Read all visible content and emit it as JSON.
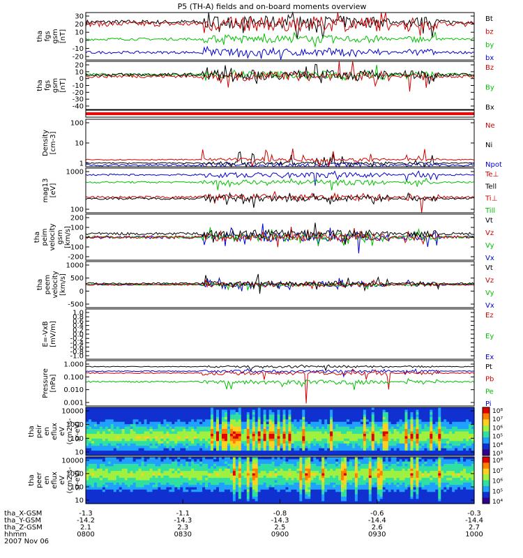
{
  "title": "P5 (TH-A) fields and on-board moments overview",
  "chart_data": {
    "type": "line",
    "title": "P5 (TH-A) fields and on-board moments overview",
    "x_axis": {
      "ticks": [
        "0800",
        "0830",
        "0900",
        "0930",
        "1000"
      ],
      "date": "2007 Nov 06",
      "ephemeris": [
        {
          "label": "tha_X-GSM",
          "values": [
            "-1.3",
            "-1.1",
            "-0.8",
            "-0.6",
            "-0.3"
          ]
        },
        {
          "label": "tha_Y-GSM",
          "values": [
            "-14.2",
            "-14.3",
            "-14.3",
            "-14.4",
            "-14.4"
          ]
        },
        {
          "label": "tha_Z-GSM",
          "values": [
            "2.1",
            "2.3",
            "2.5",
            "2.6",
            "2.7"
          ]
        },
        {
          "label": "hhmm",
          "values": [
            "0800",
            "0830",
            "0900",
            "0930",
            "1000"
          ]
        }
      ]
    },
    "panels": [
      {
        "id": "fgs_gsm",
        "ylabel_lines": [
          "tha",
          "fgs",
          "gsm",
          "[nT]"
        ],
        "scale": "linear",
        "ylim": [
          -20,
          30
        ],
        "ticks": [
          "30",
          "20",
          "10",
          "0",
          "-10",
          "-20"
        ],
        "legend": [
          {
            "name": "Bt",
            "color": "#000000"
          },
          {
            "name": "bz",
            "color": "#d00000"
          },
          {
            "name": "by",
            "color": "#00c000"
          },
          {
            "name": "bx",
            "color": "#0000d0"
          }
        ]
      },
      {
        "id": "fgs_gsm_dp",
        "ylabel_lines": [
          "tha",
          "fgs",
          "gsm",
          "[nT]"
        ],
        "scale": "linear",
        "ylim": [
          -45,
          20
        ],
        "ticks": [
          "20",
          "10",
          "0",
          "-10",
          "-20",
          "-30",
          "-40"
        ],
        "legend": [
          {
            "name": "Bz",
            "color": "#d00000"
          },
          {
            "name": "By",
            "color": "#00c000"
          },
          {
            "name": "Bx",
            "color": "#000000"
          }
        ]
      },
      {
        "id": "red_bar",
        "ylabel_lines": [],
        "scale": "none",
        "ticks": [],
        "legend": []
      },
      {
        "id": "density",
        "ylabel_lines": [
          "Density",
          "[cm-3]"
        ],
        "scale": "log",
        "ylim": [
          1,
          200
        ],
        "ticks": [
          "100",
          "10",
          "1"
        ],
        "legend": [
          {
            "name": "Ne",
            "color": "#d00000"
          },
          {
            "name": "Ni",
            "color": "#000000"
          },
          {
            "name": "Npot",
            "color": "#0000d0"
          }
        ]
      },
      {
        "id": "temperature",
        "ylabel_lines": [
          "mag13",
          "[eV]"
        ],
        "scale": "log",
        "ylim": [
          30,
          3000
        ],
        "ticks": [
          "1000",
          "100"
        ],
        "legend": [
          {
            "name": "Te⊥",
            "color": "#d00000"
          },
          {
            "name": "Tell",
            "color": "#000000"
          },
          {
            "name": "Ti⊥",
            "color": "#d00000"
          },
          {
            "name": "Till",
            "color": "#00c000"
          }
        ]
      },
      {
        "id": "ion_velocity",
        "ylabel_lines": [
          "tha",
          "peim",
          "velocity",
          "gsm",
          "[km/s]"
        ],
        "scale": "linear",
        "ylim": [
          -200,
          200
        ],
        "ticks": [
          "200",
          "100",
          "0",
          "-100",
          "-200"
        ],
        "legend": [
          {
            "name": "Vt",
            "color": "#000000"
          },
          {
            "name": "Vz",
            "color": "#d00000"
          },
          {
            "name": "Vy",
            "color": "#00c000"
          },
          {
            "name": "Vx",
            "color": "#0000d0"
          }
        ]
      },
      {
        "id": "electron_velocity",
        "ylabel_lines": [
          "tha",
          "peem",
          "velocity",
          "[km/s]"
        ],
        "scale": "linear",
        "ylim": [
          -1000,
          1000
        ],
        "ticks": [
          "1000",
          "500",
          "0",
          "-500"
        ],
        "legend": [
          {
            "name": "Vt",
            "color": "#000000"
          },
          {
            "name": "Vz",
            "color": "#d00000"
          },
          {
            "name": "Vy",
            "color": "#00c000"
          },
          {
            "name": "Vx",
            "color": "#0000d0"
          }
        ]
      },
      {
        "id": "efield",
        "ylabel_lines": [
          "E=-VxB",
          "[mV/m]"
        ],
        "scale": "linear",
        "ylim": [
          -1,
          1
        ],
        "ticks": [
          "1.0",
          "0.8",
          "0.6",
          "0.4",
          "0.2",
          "0.0",
          "-0.2",
          "-0.4",
          "-0.6",
          "-0.8",
          "-1.0"
        ],
        "legend": [
          {
            "name": "Ez",
            "color": "#d00000"
          },
          {
            "name": "Ey",
            "color": "#00c000"
          },
          {
            "name": "Ex",
            "color": "#0000d0"
          }
        ]
      },
      {
        "id": "pressure",
        "ylabel_lines": [
          "Pressure",
          "[nPa]"
        ],
        "scale": "log",
        "ylim": [
          0.001,
          1
        ],
        "ticks": [
          "1.000",
          "0.100",
          "0.010",
          "0.001"
        ],
        "legend": [
          {
            "name": "Pt",
            "color": "#000000"
          },
          {
            "name": "Pb",
            "color": "#d00000"
          },
          {
            "name": "Pe",
            "color": "#00c000"
          },
          {
            "name": "Pi",
            "color": "#0000d0"
          }
        ]
      },
      {
        "id": "ion_spectrogram",
        "ylabel_lines": [
          "tha",
          "peir",
          "en",
          "eflux",
          "eV",
          "(cm2-s-",
          "sr-eV)"
        ],
        "scale": "log",
        "ticks": [
          "10000",
          "1000",
          "100",
          "10"
        ],
        "colorbar": [
          "10⁸",
          "10⁷",
          "10⁶",
          "10⁵",
          "10⁴",
          "10³"
        ]
      },
      {
        "id": "electron_spectrogram",
        "ylabel_lines": [
          "tha",
          "peer",
          "en",
          "eflux",
          "eV",
          "(cm2-s-",
          "sr-eV)"
        ],
        "scale": "log",
        "ticks": [
          "10000",
          "1000",
          "100",
          "10"
        ],
        "colorbar": [
          "10⁸",
          "10⁷",
          "10⁶",
          "10⁵",
          "10⁴"
        ]
      }
    ]
  }
}
